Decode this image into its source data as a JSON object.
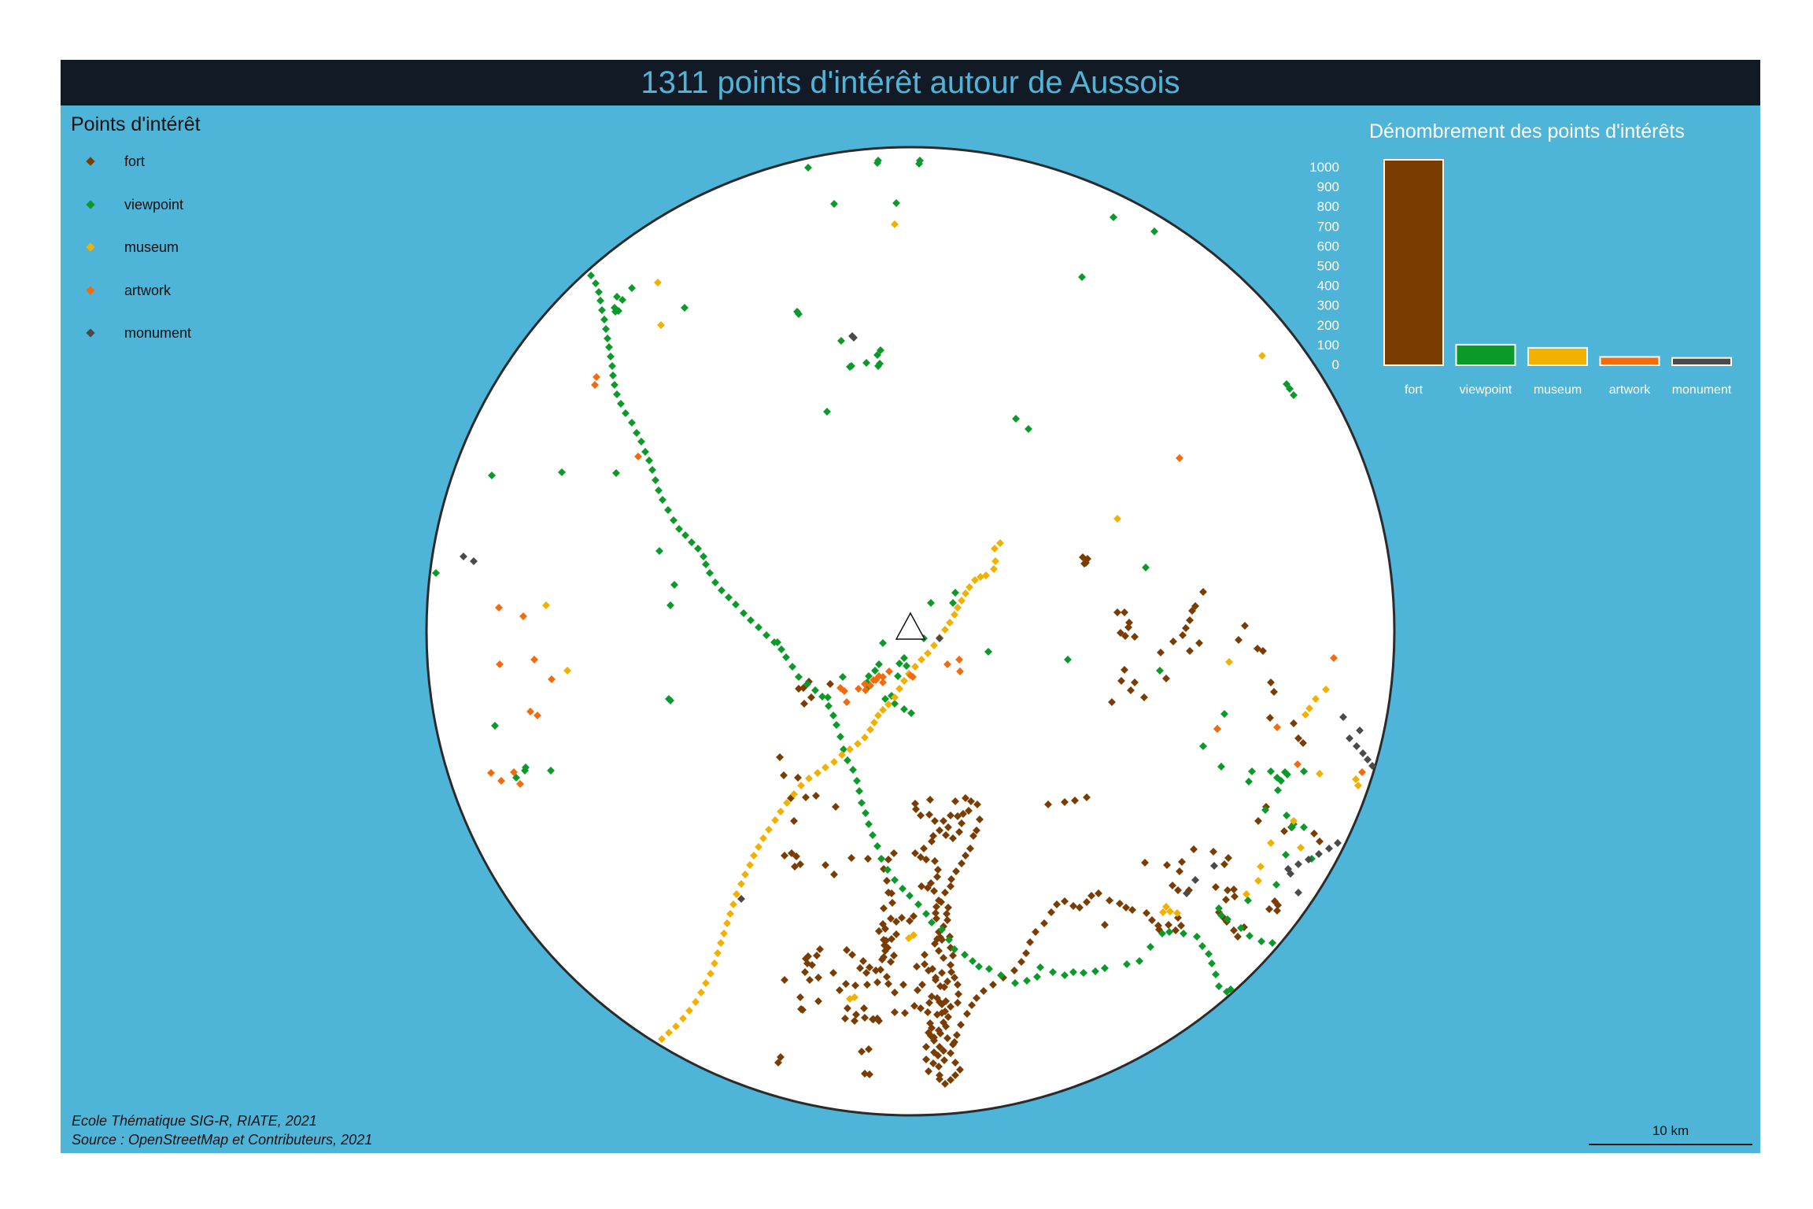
{
  "title": "1311 points d'intérêt autour de Aussois",
  "legend": {
    "title": "Points d'intérêt",
    "items": [
      {
        "label": "fort",
        "color": "#7a3c00"
      },
      {
        "label": "viewpoint",
        "color": "#0a9a2a"
      },
      {
        "label": "museum",
        "color": "#f2b100"
      },
      {
        "label": "artwork",
        "color": "#f26b0f"
      },
      {
        "label": "monument",
        "color": "#4a4a4a"
      }
    ]
  },
  "inset": {
    "title": "Dénombrement des points d'intérêts"
  },
  "chart_data": {
    "type": "bar",
    "title": "Dénombrement des points d'intérêts",
    "categories": [
      "fort",
      "viewpoint",
      "museum",
      "artwork",
      "monument"
    ],
    "values": [
      1040,
      104,
      88,
      42,
      37
    ],
    "colors": [
      "#7a3c00",
      "#0a9a2a",
      "#f2b100",
      "#f26b0f",
      "#4a4a4a"
    ],
    "yticks": [
      0,
      100,
      200,
      300,
      400,
      500,
      600,
      700,
      800,
      900,
      1000
    ],
    "ylim": [
      0,
      1040
    ],
    "grid": false
  },
  "credits": {
    "line1": "Ecole Thématique SIG-R, RIATE, 2021",
    "line2": "Source : OpenStreetMap et Contributeurs, 2021"
  },
  "scale_bar": {
    "label": "10 km"
  }
}
